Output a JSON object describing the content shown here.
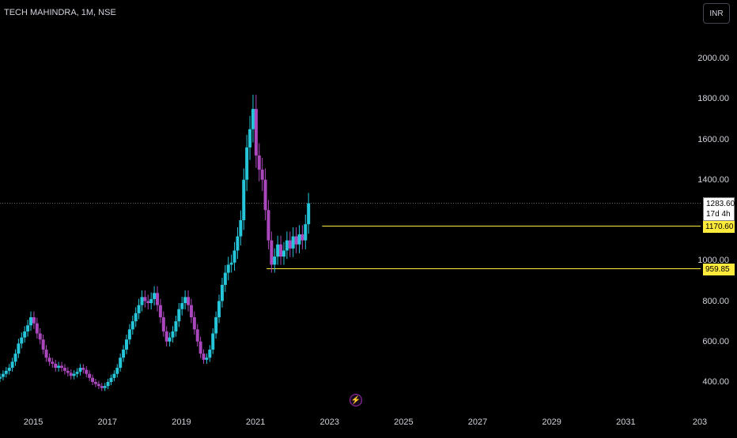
{
  "header": {
    "symbol": "TECH MAHINDRA, 1M, NSE"
  },
  "currency": "INR",
  "last_price": {
    "value": "1283.60",
    "countdown": "17d 4h"
  },
  "levels": [
    {
      "value": "1170.60",
      "color": "#ffeb3b"
    },
    {
      "value": "959.85",
      "color": "#ffeb3b"
    }
  ],
  "colors": {
    "up": "#26c6da",
    "down": "#ab47bc",
    "level": "#ffeb3b",
    "last_line": "#6b6f7a"
  },
  "icon": "lightning-icon",
  "chart_data": {
    "type": "candlestick",
    "interval": "1M",
    "yticks": [
      "2000.00",
      "1800.00",
      "1600.00",
      "1400.00",
      "1000.00",
      "800.00",
      "600.00",
      "400.00"
    ],
    "xticks": [
      "2015",
      "2017",
      "2019",
      "2021",
      "2023",
      "2025",
      "2027",
      "2029",
      "2031",
      "203"
    ],
    "ylim": [
      330,
      2170
    ],
    "xlim": [
      2014.1,
      2033.0
    ],
    "series": {
      "x_start": 2014.1,
      "step_years": 0.08333,
      "close": [
        425,
        440,
        455,
        470,
        500,
        540,
        590,
        620,
        650,
        680,
        720,
        690,
        640,
        610,
        560,
        520,
        500,
        490,
        470,
        480,
        470,
        455,
        445,
        430,
        440,
        450,
        470,
        460,
        440,
        420,
        400,
        390,
        380,
        370,
        380,
        400,
        420,
        440,
        470,
        520,
        560,
        610,
        660,
        700,
        740,
        780,
        820,
        800,
        790,
        810,
        840,
        780,
        720,
        650,
        600,
        620,
        650,
        700,
        760,
        790,
        820,
        780,
        720,
        660,
        600,
        540,
        510,
        520,
        560,
        640,
        720,
        800,
        880,
        940,
        980,
        990,
        1050,
        1120,
        1200,
        1400,
        1560,
        1650,
        1750,
        1520,
        1450,
        1400,
        1250,
        1100,
        980,
        1020,
        1080,
        1020,
        1050,
        1100,
        1060,
        1120,
        1080,
        1130,
        1100,
        1180,
        1283.6
      ]
    }
  }
}
